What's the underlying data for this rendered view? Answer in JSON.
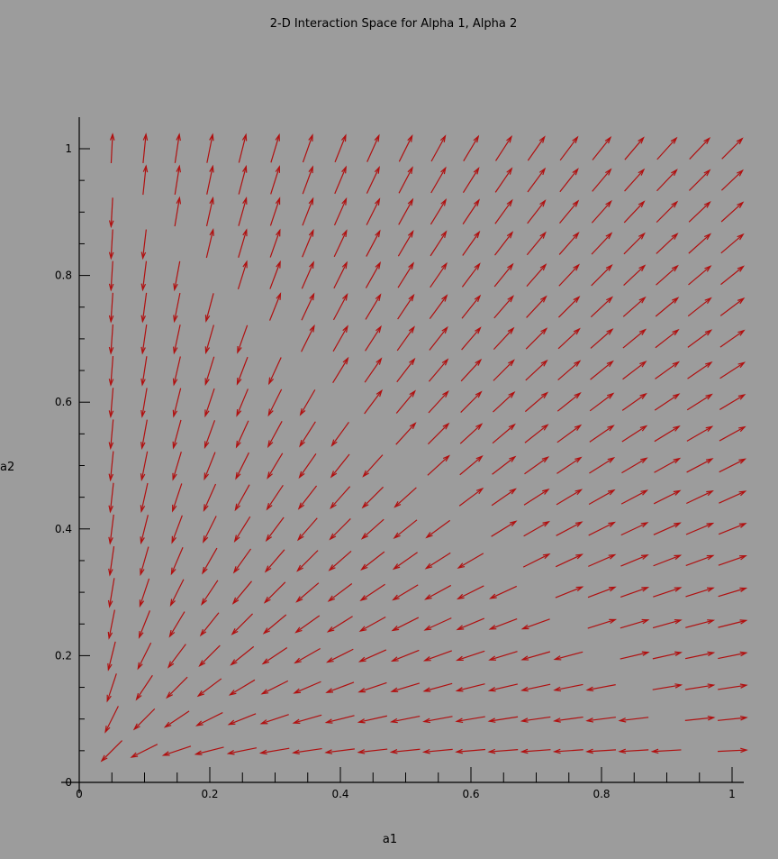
{
  "colors": {
    "background": "#9c9c9c",
    "arrow": "#b01010",
    "axis": "#000000",
    "text": "#000000"
  },
  "chart_data": {
    "type": "vector_field",
    "title": "2-D Interaction Space for Alpha 1, Alpha 2",
    "xlabel": "a1",
    "ylabel": "a2",
    "xlim": [
      0,
      1.03
    ],
    "ylim": [
      0,
      1.03
    ],
    "xticks": [
      0,
      0.2,
      0.4,
      0.6,
      0.8,
      1
    ],
    "yticks": [
      0,
      0.2,
      0.4,
      0.6,
      0.8,
      1
    ],
    "xtick_labels": [
      "0",
      "0.2",
      "0.4",
      "0.6",
      "0.8",
      "1"
    ],
    "ytick_labels": [
      "0",
      "0.2",
      "0.4",
      "0.6",
      "0.8",
      "1"
    ],
    "grid": false,
    "grid_x": [
      0.05,
      0.1,
      0.15,
      0.2,
      0.25,
      0.3,
      0.35,
      0.4,
      0.45,
      0.5,
      0.55,
      0.6,
      0.65,
      0.7,
      0.75,
      0.8,
      0.85,
      0.9,
      0.95,
      1.0
    ],
    "grid_y": [
      0.05,
      0.1,
      0.15,
      0.2,
      0.25,
      0.3,
      0.35,
      0.4,
      0.45,
      0.5,
      0.55,
      0.6,
      0.65,
      0.7,
      0.75,
      0.8,
      0.85,
      0.9,
      0.95,
      1.0
    ],
    "field": "d(a1)/dt = a1*(a1 + a2 - 1), d(a2)/dt = a2*(a1 + a2 - 1); arrows drawn with uniform length"
  }
}
